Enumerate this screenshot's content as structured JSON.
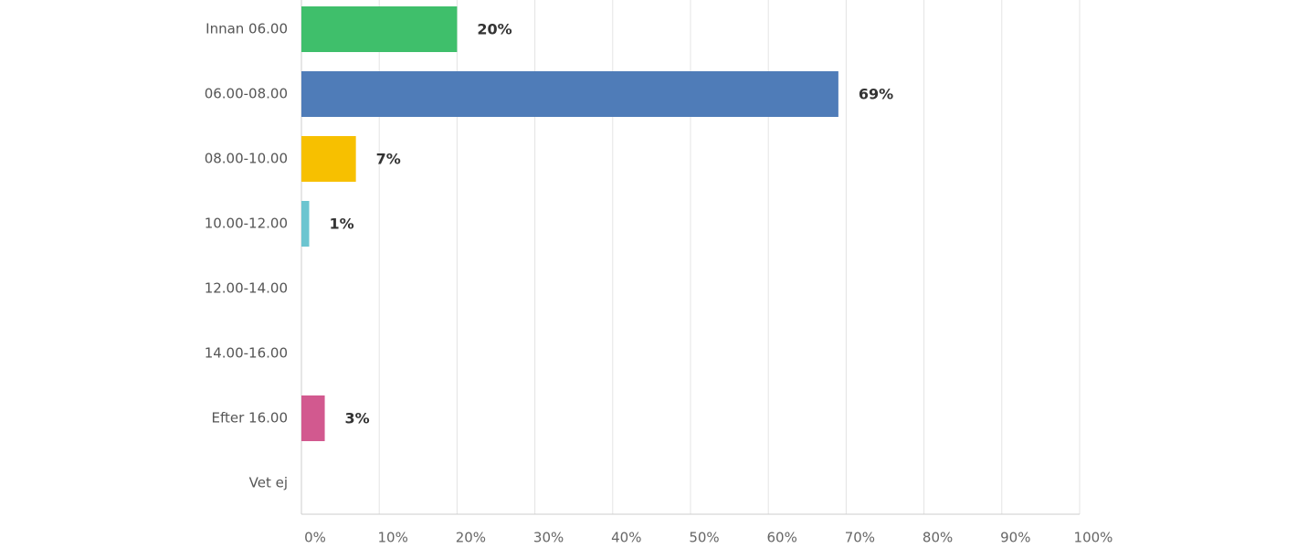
{
  "chart_data": {
    "type": "bar",
    "orientation": "horizontal",
    "categories": [
      "Innan 06.00",
      "06.00-08.00",
      "08.00-10.00",
      "10.00-12.00",
      "12.00-14.00",
      "14.00-16.00",
      "Efter 16.00",
      "Vet ej"
    ],
    "values": [
      20,
      69,
      7,
      1,
      0,
      0,
      3,
      0
    ],
    "value_labels": [
      "20%",
      "69%",
      "7%",
      "1%",
      null,
      null,
      "3%",
      null
    ],
    "colors": [
      "#3fbf6b",
      "#4f7cb8",
      "#f7c000",
      "#6cc5d0",
      null,
      null,
      "#d2598f",
      null
    ],
    "xlim": [
      0,
      100
    ],
    "xticks": [
      {
        "value": 0,
        "label": "0%"
      },
      {
        "value": 10,
        "label": "10%"
      },
      {
        "value": 20,
        "label": "20%"
      },
      {
        "value": 30,
        "label": "30%"
      },
      {
        "value": 40,
        "label": "40%"
      },
      {
        "value": 50,
        "label": "50%"
      },
      {
        "value": 60,
        "label": "60%"
      },
      {
        "value": 70,
        "label": "70%"
      },
      {
        "value": 80,
        "label": "80%"
      },
      {
        "value": 90,
        "label": "90%"
      },
      {
        "value": 100,
        "label": "100%"
      }
    ],
    "grid": true
  }
}
